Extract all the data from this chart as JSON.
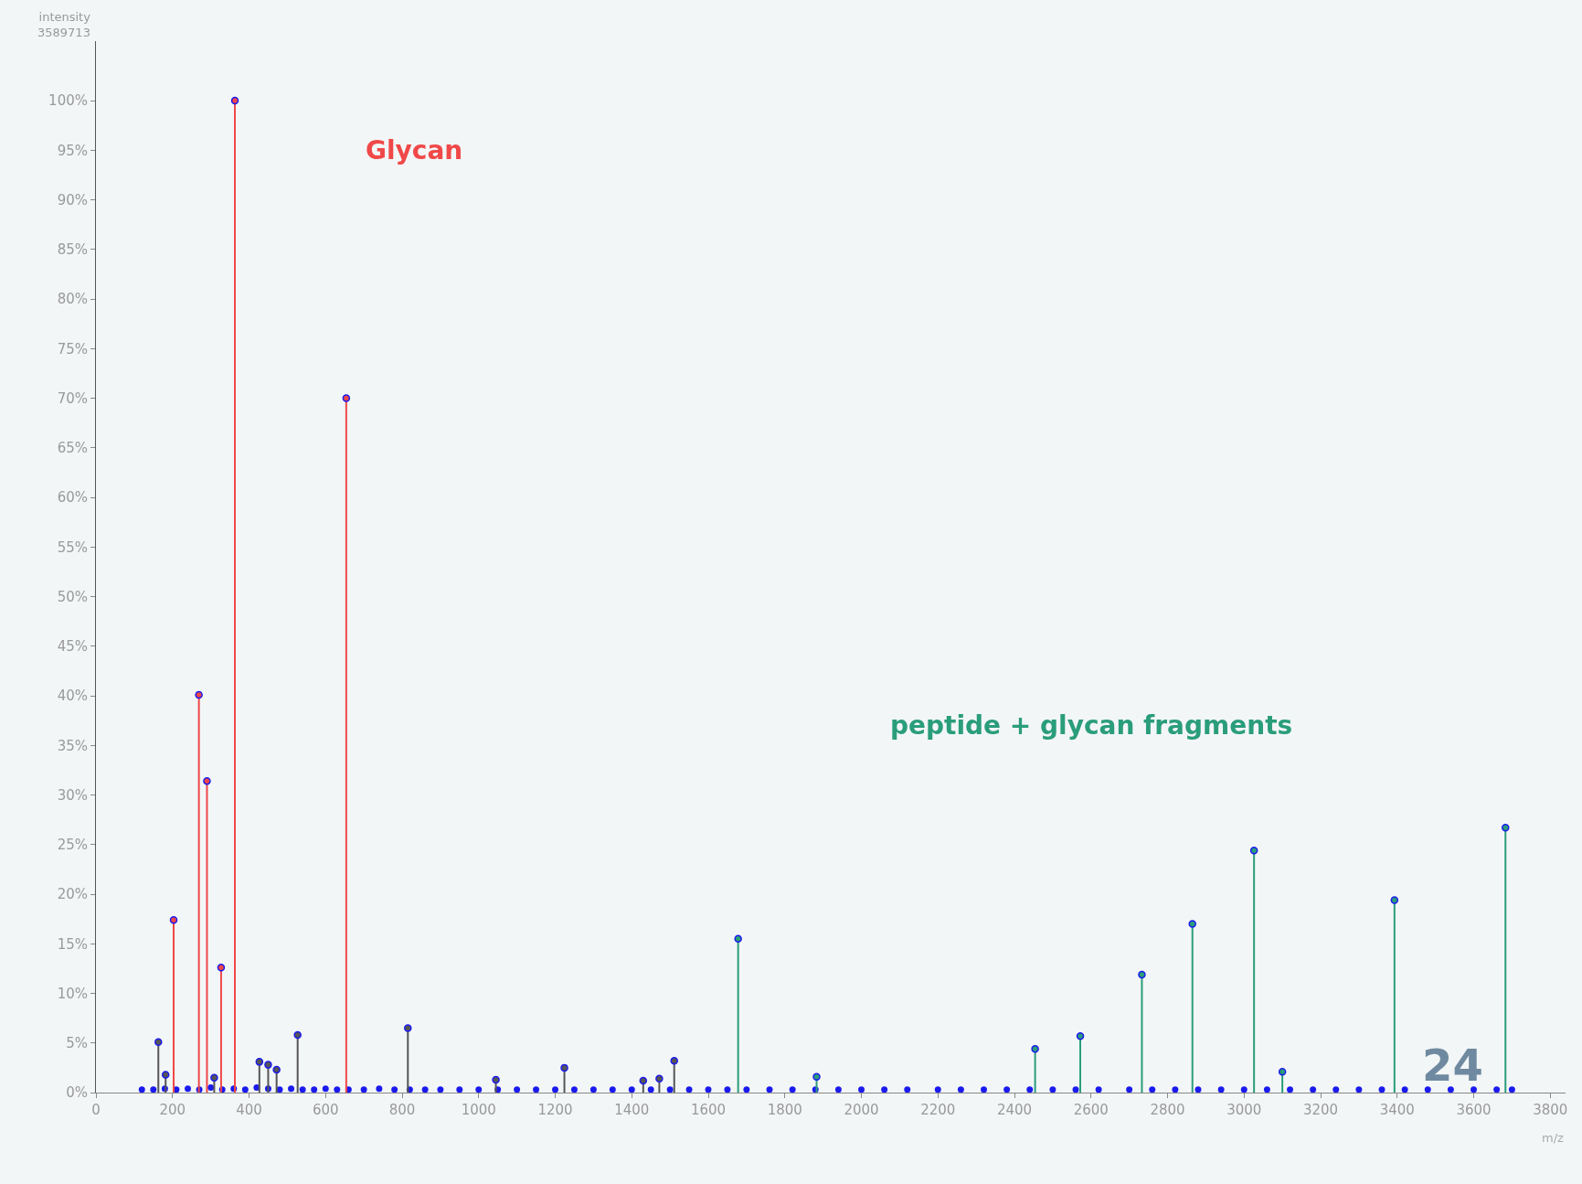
{
  "chart_data": {
    "type": "lollipop",
    "ylabel": "intensity\n3589713",
    "xlabel": "m/z",
    "annotations": [
      "24"
    ],
    "xlim": [
      0,
      3840
    ],
    "ylim": [
      0,
      106
    ],
    "xticks": [
      0,
      200,
      400,
      600,
      800,
      1000,
      1200,
      1400,
      1600,
      1800,
      2000,
      2200,
      2400,
      2600,
      2800,
      3000,
      3200,
      3400,
      3600,
      3800
    ],
    "yticks": [
      {
        "value": 0,
        "label": "0%"
      },
      {
        "value": 5,
        "label": "5%"
      },
      {
        "value": 10,
        "label": "10%"
      },
      {
        "value": 15,
        "label": "15%"
      },
      {
        "value": 20,
        "label": "20%"
      },
      {
        "value": 25,
        "label": "25%"
      },
      {
        "value": 30,
        "label": "30%"
      },
      {
        "value": 35,
        "label": "35%"
      },
      {
        "value": 40,
        "label": "40%"
      },
      {
        "value": 45,
        "label": "45%"
      },
      {
        "value": 50,
        "label": "50%"
      },
      {
        "value": 55,
        "label": "55%"
      },
      {
        "value": 60,
        "label": "60%"
      },
      {
        "value": 65,
        "label": "65%"
      },
      {
        "value": 70,
        "label": "70%"
      },
      {
        "value": 75,
        "label": "75%"
      },
      {
        "value": 80,
        "label": "80%"
      },
      {
        "value": 85,
        "label": "85%"
      },
      {
        "value": 90,
        "label": "90%"
      },
      {
        "value": 95,
        "label": "95%"
      },
      {
        "value": 100,
        "label": "100%"
      }
    ],
    "grid": false,
    "marker": "circle",
    "series": [
      {
        "color": "#1a1aee",
        "type": "scatter",
        "x": [
          120,
          150,
          180,
          210,
          240,
          270,
          300,
          330,
          360,
          390,
          420,
          450,
          480,
          510,
          540,
          570,
          600,
          630,
          660,
          700,
          740,
          780,
          820,
          860,
          900,
          950,
          1000,
          1050,
          1100,
          1150,
          1200,
          1250,
          1300,
          1350,
          1400,
          1450,
          1500,
          1550,
          1600,
          1650,
          1700,
          1760,
          1820,
          1880,
          1940,
          2000,
          2060,
          2120,
          2200,
          2260,
          2320,
          2380,
          2440,
          2500,
          2560,
          2620,
          2700,
          2760,
          2820,
          2880,
          2940,
          3000,
          3060,
          3120,
          3180,
          3240,
          3300,
          3360,
          3420,
          3480,
          3540,
          3600,
          3660,
          3700
        ],
        "values": [
          0.3,
          0.3,
          0.4,
          0.3,
          0.4,
          0.3,
          0.5,
          0.3,
          0.4,
          0.3,
          0.5,
          0.4,
          0.3,
          0.4,
          0.3,
          0.3,
          0.4,
          0.3,
          0.3,
          0.3,
          0.4,
          0.3,
          0.3,
          0.3,
          0.3,
          0.3,
          0.3,
          0.3,
          0.3,
          0.3,
          0.3,
          0.3,
          0.3,
          0.3,
          0.3,
          0.3,
          0.3,
          0.3,
          0.3,
          0.3,
          0.3,
          0.3,
          0.3,
          0.3,
          0.3,
          0.3,
          0.3,
          0.3,
          0.3,
          0.3,
          0.3,
          0.3,
          0.3,
          0.3,
          0.3,
          0.3,
          0.3,
          0.3,
          0.3,
          0.3,
          0.3,
          0.3,
          0.3,
          0.3,
          0.3,
          0.3,
          0.3,
          0.3,
          0.3,
          0.3,
          0.3,
          0.3,
          0.3,
          0.3
        ]
      },
      {
        "color": "#555555",
        "x": [
          163,
          182,
          309,
          427,
          450,
          472,
          527,
          815,
          1045,
          1224,
          1430,
          1472,
          1511
        ],
        "values": [
          5.1,
          1.8,
          1.5,
          3.1,
          2.8,
          2.3,
          5.8,
          6.5,
          1.3,
          2.5,
          1.2,
          1.4,
          3.2
        ]
      },
      {
        "name": "Glycan",
        "color": "#f04848",
        "x": [
          203,
          269,
          290,
          327,
          363,
          654
        ],
        "values": [
          17.4,
          40.1,
          31.4,
          12.6,
          100,
          70.0
        ]
      },
      {
        "name": "peptide + glycan fragments",
        "color": "#2a9d7a",
        "x": [
          1678,
          1883,
          2454,
          2572,
          2733,
          2865,
          3026,
          3100,
          3393,
          3683
        ],
        "values": [
          15.5,
          1.6,
          4.4,
          5.7,
          11.9,
          17.0,
          24.4,
          2.1,
          19.4,
          26.7
        ]
      }
    ]
  }
}
